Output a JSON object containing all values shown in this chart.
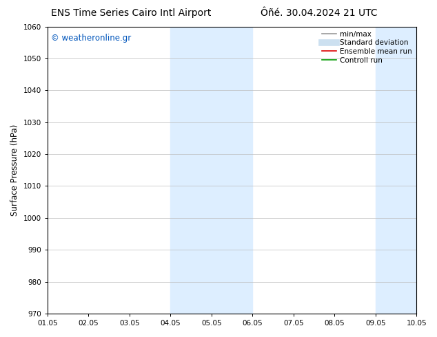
{
  "title_left": "ENS Time Series Cairo Intl Airport",
  "title_right": "Ôñé. 30.04.2024 21 UTC",
  "ylabel": "Surface Pressure (hPa)",
  "ylim": [
    970,
    1060
  ],
  "yticks": [
    970,
    980,
    990,
    1000,
    1010,
    1020,
    1030,
    1040,
    1050,
    1060
  ],
  "xlim": [
    0,
    9
  ],
  "xtick_labels": [
    "01.05",
    "02.05",
    "03.05",
    "04.05",
    "05.05",
    "06.05",
    "07.05",
    "08.05",
    "09.05",
    "10.05"
  ],
  "xtick_positions": [
    0,
    1,
    2,
    3,
    4,
    5,
    6,
    7,
    8,
    9
  ],
  "shaded_regions": [
    {
      "xmin": 3.0,
      "xmax": 5.0
    },
    {
      "xmin": 8.0,
      "xmax": 9.5
    }
  ],
  "shaded_color": "#ddeeff",
  "watermark_text": "© weatheronline.gr",
  "watermark_color": "#0055bb",
  "legend_items": [
    {
      "label": "min/max",
      "color": "#999999",
      "lw": 1.2,
      "style": "solid"
    },
    {
      "label": "Standard deviation",
      "color": "#cce0f0",
      "lw": 7,
      "style": "solid"
    },
    {
      "label": "Ensemble mean run",
      "color": "#dd0000",
      "lw": 1.2,
      "style": "solid"
    },
    {
      "label": "Controll run",
      "color": "#009900",
      "lw": 1.2,
      "style": "solid"
    }
  ],
  "bg_color": "#ffffff",
  "grid_color": "#bbbbbb",
  "title_fontsize": 10,
  "axis_label_fontsize": 8.5,
  "tick_fontsize": 7.5,
  "watermark_fontsize": 8.5,
  "legend_fontsize": 7.5
}
